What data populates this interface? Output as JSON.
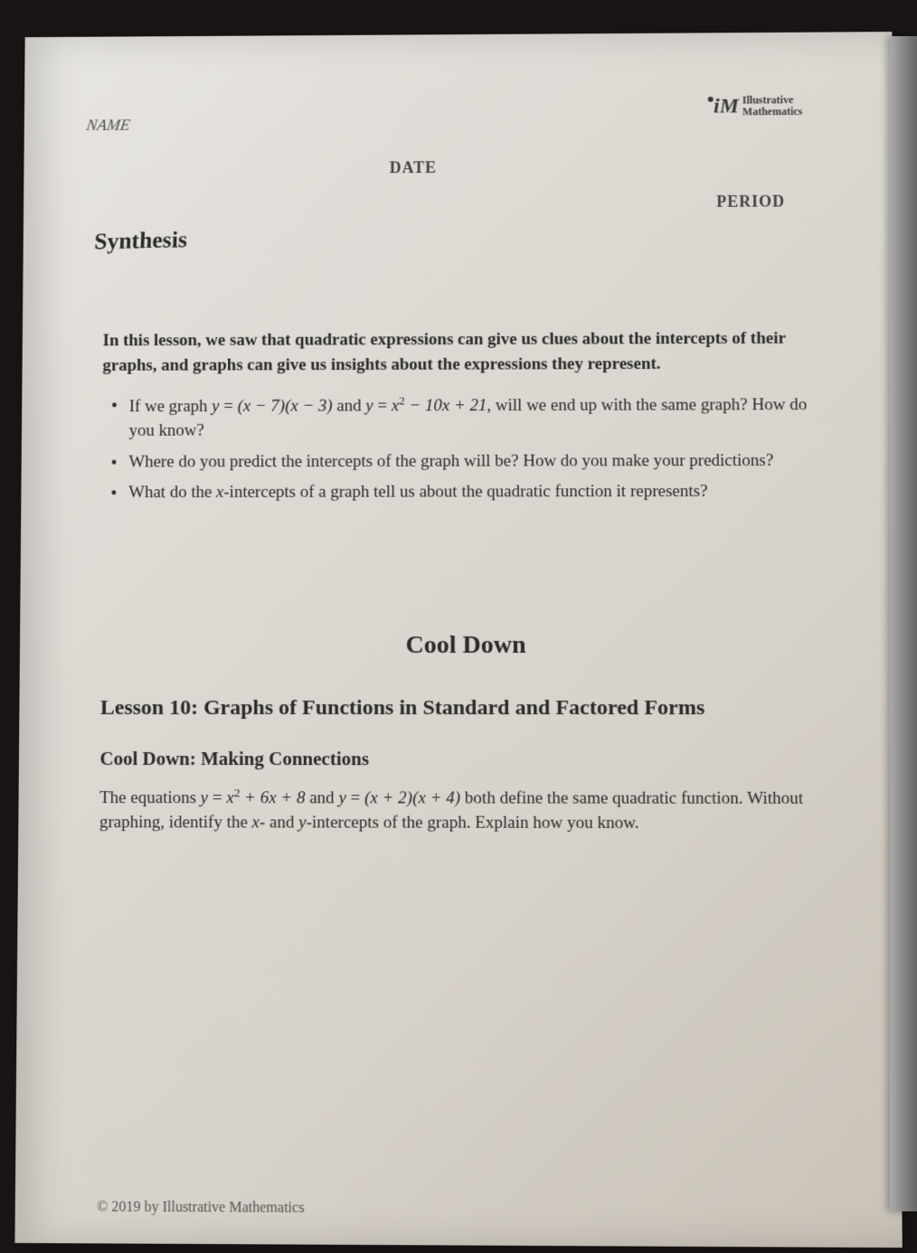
{
  "logo": {
    "mark": "iM",
    "line1": "Illustrative",
    "line2": "Mathematics"
  },
  "header": {
    "name_label": "NAME",
    "date_label": "DATE",
    "period_label": "PERIOD"
  },
  "synthesis": {
    "title": "Synthesis",
    "intro": "In this lesson, we saw that quadratic expressions can give us clues about the intercepts of their graphs, and graphs can give us insights about the expressions they represent.",
    "bullets": [
      {
        "pre": "If we graph ",
        "eq1_lhs": "y",
        "eq1_rhs": "(x − 7)(x − 3)",
        "mid": " and ",
        "eq2_lhs": "y",
        "eq2_rhs_a": "x",
        "eq2_rhs_b": " − 10x + 21",
        "post": ", will we end up with the same graph? How do you know?"
      },
      {
        "text": "Where do you predict the intercepts of the graph will be? How do you make your predictions?"
      },
      {
        "pre": "What do the ",
        "var": "x",
        "post": "-intercepts of a graph tell us about the quadratic function it represents?"
      }
    ]
  },
  "cooldown": {
    "heading": "Cool Down",
    "lesson_title": "Lesson 10: Graphs of Functions in Standard and Factored Forms",
    "subsection": "Cool Down: Making Connections",
    "body_pre": "The equations ",
    "eq1_lhs": "y",
    "eq1_rhs_a": "x",
    "eq1_rhs_b": " + 6x + 8",
    "body_mid": " and ",
    "eq2_lhs": "y",
    "eq2_rhs": "(x + 2)(x + 4)",
    "body_post1": " both define the same quadratic function. Without graphing, identify the ",
    "var_x": "x",
    "body_post2": "- and ",
    "var_y": "y",
    "body_post3": "-intercepts of the graph. Explain how you know."
  },
  "footer": {
    "copyright": "© 2019 by Illustrative Mathematics"
  },
  "colors": {
    "text": "#2a2a2a",
    "page_bg": "#dedad4",
    "outer_bg": "#1a1515"
  }
}
